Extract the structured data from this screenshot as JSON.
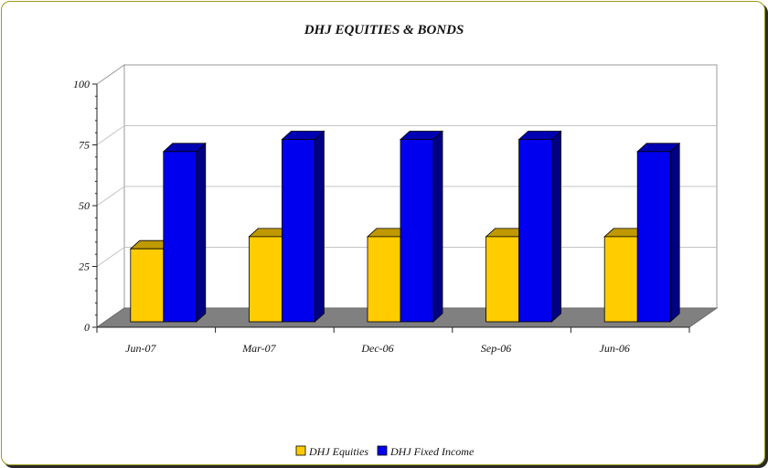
{
  "chart_data": {
    "type": "bar",
    "title": "DHJ EQUITIES & BONDS",
    "xlabel": "",
    "ylabel": "",
    "categories": [
      "Jun-07",
      "Mar-07",
      "Dec-06",
      "Sep-06",
      "Jun-06"
    ],
    "series": [
      {
        "name": "DHJ Equities",
        "values": [
          30,
          35,
          35,
          35,
          35
        ],
        "color": "#FFCC00"
      },
      {
        "name": "DHJ Fixed Income",
        "values": [
          70,
          75,
          75,
          75,
          70
        ],
        "color": "#0000EE"
      }
    ],
    "ylim": [
      0,
      100
    ],
    "yticks": [
      "0",
      "25",
      "50",
      "75",
      "100"
    ],
    "grid": true,
    "legend": "bottom",
    "three_d": true
  }
}
